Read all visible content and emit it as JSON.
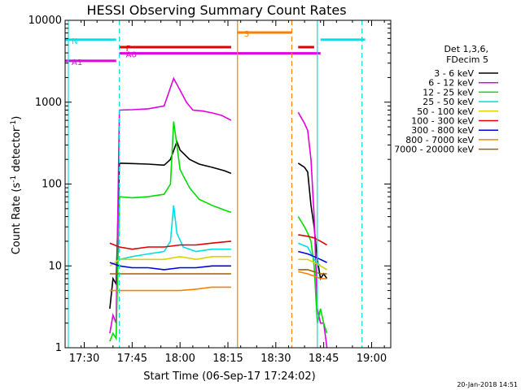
{
  "chart_data": {
    "type": "line",
    "title": "HESSI Observing Summary Count Rates",
    "xlabel": "Start Time (06-Sep-17 17:24:02)",
    "ylabel_main": "Count Rate (s",
    "ylabel_sup1": "-1",
    "ylabel_mid": " detector",
    "ylabel_sup2": "-1",
    "ylabel_end": ")",
    "yscale": "log",
    "ylim": [
      1,
      10000
    ],
    "xlim": [
      "17:24",
      "19:06"
    ],
    "x_ticks": [
      "17:30",
      "17:45",
      "18:00",
      "18:15",
      "18:30",
      "18:45",
      "19:00"
    ],
    "y_ticks": [
      "1",
      "10",
      "100",
      "1000",
      "10000"
    ],
    "footer_date": "20-Jan-2018 14:51",
    "legend": {
      "header1": "Det 1,3,6,",
      "header2": "FDecim 5",
      "entries": [
        {
          "label": "3 - 6 keV",
          "color": "#000000"
        },
        {
          "label": "6 - 12 keV",
          "color": "#e000e0"
        },
        {
          "label": "12 - 25 keV",
          "color": "#00dd00"
        },
        {
          "label": "25 - 50 keV",
          "color": "#00e0e0"
        },
        {
          "label": "50 - 100 keV",
          "color": "#e0d000"
        },
        {
          "label": "100 - 300 keV",
          "color": "#e00000"
        },
        {
          "label": "300 - 800 keV",
          "color": "#0000e0"
        },
        {
          "label": "800 - 7000 keV",
          "color": "#ff8000"
        },
        {
          "label": "7000 - 20000 keV",
          "color": "#a06000"
        }
      ]
    },
    "flags": [
      {
        "label": "N",
        "color": "#00e0e0",
        "y": 5800,
        "segments": [
          [
            "17:24",
            "17:40"
          ],
          [
            "18:44",
            "18:58"
          ]
        ]
      },
      {
        "label": "S",
        "color": "#ff8000",
        "y": 7100,
        "segments": [
          [
            "18:18",
            "18:35"
          ]
        ]
      },
      {
        "label": "F",
        "color": "#e00000",
        "y": 4700,
        "segments": [
          [
            "17:41",
            "18:16"
          ],
          [
            "18:37",
            "18:42"
          ]
        ]
      },
      {
        "label": "A0",
        "color": "#e000e0",
        "y": 3950,
        "segments": [
          [
            "17:41",
            "18:44"
          ]
        ]
      },
      {
        "label": "A1",
        "color": "#e000e0",
        "y": 3200,
        "segments": [
          [
            "17:24",
            "17:40"
          ]
        ]
      }
    ],
    "vertical_lines": [
      {
        "x": "17:25",
        "color": "#00e0e0",
        "style": "solid"
      },
      {
        "x": "17:41",
        "color": "#00e0e0",
        "style": "dashed"
      },
      {
        "x": "18:18",
        "color": "#ff8000",
        "style": "solid"
      },
      {
        "x": "18:35",
        "color": "#ff8000",
        "style": "dashed"
      },
      {
        "x": "18:43",
        "color": "#00e0e0",
        "style": "solid"
      },
      {
        "x": "18:57",
        "color": "#00e0e0",
        "style": "dashed"
      }
    ],
    "series": [
      {
        "name": "3 - 6 keV",
        "color": "#000000",
        "points": [
          [
            "17:38",
            3
          ],
          [
            "17:39",
            7
          ],
          [
            "17:40",
            6
          ],
          [
            "17:41",
            180
          ],
          [
            "17:45",
            178
          ],
          [
            "17:50",
            175
          ],
          [
            "17:55",
            170
          ],
          [
            "17:57",
            200
          ],
          [
            "17:59",
            330
          ],
          [
            "18:00",
            260
          ],
          [
            "18:03",
            200
          ],
          [
            "18:06",
            175
          ],
          [
            "18:10",
            160
          ],
          [
            "18:14",
            145
          ],
          [
            "18:16",
            135
          ],
          [
            "18:37",
            180
          ],
          [
            "18:39",
            160
          ],
          [
            "18:40",
            140
          ],
          [
            "18:41",
            55
          ],
          [
            "18:42",
            30
          ],
          [
            "18:43",
            12
          ],
          [
            "18:44",
            7
          ],
          [
            "18:45",
            8
          ],
          [
            "18:46",
            7
          ]
        ]
      },
      {
        "name": "6 - 12 keV",
        "color": "#e000e0",
        "points": [
          [
            "17:38",
            1.5
          ],
          [
            "17:39",
            2.5
          ],
          [
            "17:40",
            2
          ],
          [
            "17:41",
            800
          ],
          [
            "17:45",
            810
          ],
          [
            "17:50",
            830
          ],
          [
            "17:55",
            900
          ],
          [
            "17:58",
            1950
          ],
          [
            "18:00",
            1400
          ],
          [
            "18:02",
            1000
          ],
          [
            "18:04",
            800
          ],
          [
            "18:07",
            780
          ],
          [
            "18:10",
            740
          ],
          [
            "18:13",
            690
          ],
          [
            "18:16",
            600
          ],
          [
            "18:37",
            750
          ],
          [
            "18:39",
            550
          ],
          [
            "18:40",
            450
          ],
          [
            "18:41",
            200
          ],
          [
            "18:42",
            40
          ],
          [
            "18:43",
            3
          ],
          [
            "18:44",
            2
          ],
          [
            "18:45",
            2
          ],
          [
            "18:46",
            1
          ]
        ]
      },
      {
        "name": "12 - 25 keV",
        "color": "#00dd00",
        "points": [
          [
            "17:38",
            1.2
          ],
          [
            "17:39",
            1.5
          ],
          [
            "17:40",
            1.3
          ],
          [
            "17:41",
            70
          ],
          [
            "17:45",
            68
          ],
          [
            "17:50",
            70
          ],
          [
            "17:55",
            75
          ],
          [
            "17:57",
            100
          ],
          [
            "17:58",
            580
          ],
          [
            "17:59",
            300
          ],
          [
            "18:00",
            150
          ],
          [
            "18:03",
            90
          ],
          [
            "18:06",
            65
          ],
          [
            "18:10",
            55
          ],
          [
            "18:14",
            48
          ],
          [
            "18:16",
            45
          ],
          [
            "18:37",
            40
          ],
          [
            "18:39",
            30
          ],
          [
            "18:40",
            25
          ],
          [
            "18:41",
            20
          ],
          [
            "18:42",
            10
          ],
          [
            "18:43",
            2
          ],
          [
            "18:44",
            3
          ],
          [
            "18:45",
            2
          ],
          [
            "18:46",
            1.5
          ]
        ]
      },
      {
        "name": "25 - 50 keV",
        "color": "#00e0e0",
        "points": [
          [
            "17:41",
            12
          ],
          [
            "17:45",
            13
          ],
          [
            "17:50",
            14
          ],
          [
            "17:55",
            15
          ],
          [
            "17:57",
            20
          ],
          [
            "17:58",
            55
          ],
          [
            "17:59",
            25
          ],
          [
            "18:01",
            17
          ],
          [
            "18:05",
            15
          ],
          [
            "18:10",
            16
          ],
          [
            "18:16",
            16
          ],
          [
            "18:37",
            19
          ],
          [
            "18:40",
            17
          ],
          [
            "18:42",
            12
          ],
          [
            "18:44",
            10
          ],
          [
            "18:46",
            9
          ]
        ]
      },
      {
        "name": "50 - 100 keV",
        "color": "#e0d000",
        "points": [
          [
            "17:38",
            10
          ],
          [
            "17:41",
            12
          ],
          [
            "17:45",
            12
          ],
          [
            "17:50",
            12
          ],
          [
            "17:55",
            12
          ],
          [
            "18:00",
            13
          ],
          [
            "18:05",
            12
          ],
          [
            "18:10",
            13
          ],
          [
            "18:16",
            13
          ],
          [
            "18:37",
            12
          ],
          [
            "18:40",
            12
          ],
          [
            "18:42",
            11
          ],
          [
            "18:44",
            10
          ],
          [
            "18:46",
            9
          ]
        ]
      },
      {
        "name": "100 - 300 keV",
        "color": "#e00000",
        "points": [
          [
            "17:38",
            19
          ],
          [
            "17:41",
            17
          ],
          [
            "17:45",
            16
          ],
          [
            "17:50",
            17
          ],
          [
            "17:55",
            17
          ],
          [
            "18:00",
            18
          ],
          [
            "18:05",
            18
          ],
          [
            "18:10",
            19
          ],
          [
            "18:16",
            20
          ],
          [
            "18:37",
            24
          ],
          [
            "18:40",
            23
          ],
          [
            "18:42",
            22
          ],
          [
            "18:44",
            20
          ],
          [
            "18:46",
            18
          ]
        ]
      },
      {
        "name": "300 - 800 keV",
        "color": "#0000e0",
        "points": [
          [
            "17:38",
            11
          ],
          [
            "17:41",
            10
          ],
          [
            "17:45",
            9.5
          ],
          [
            "17:50",
            9.5
          ],
          [
            "17:55",
            9
          ],
          [
            "18:00",
            9.5
          ],
          [
            "18:05",
            9.5
          ],
          [
            "18:10",
            10
          ],
          [
            "18:16",
            10
          ],
          [
            "18:37",
            15
          ],
          [
            "18:40",
            14
          ],
          [
            "18:42",
            13
          ],
          [
            "18:44",
            12
          ],
          [
            "18:46",
            11
          ]
        ]
      },
      {
        "name": "800 - 7000 keV",
        "color": "#ff8000",
        "points": [
          [
            "17:38",
            5
          ],
          [
            "17:41",
            5
          ],
          [
            "17:45",
            5
          ],
          [
            "17:50",
            5
          ],
          [
            "17:55",
            5
          ],
          [
            "18:00",
            5
          ],
          [
            "18:05",
            5.2
          ],
          [
            "18:10",
            5.5
          ],
          [
            "18:16",
            5.5
          ],
          [
            "18:37",
            8.5
          ],
          [
            "18:40",
            8
          ],
          [
            "18:42",
            7.5
          ],
          [
            "18:44",
            7
          ],
          [
            "18:46",
            7
          ]
        ]
      },
      {
        "name": "7000 - 20000 keV",
        "color": "#a06000",
        "points": [
          [
            "17:38",
            8
          ],
          [
            "17:41",
            8
          ],
          [
            "17:45",
            8
          ],
          [
            "17:50",
            8
          ],
          [
            "17:55",
            8
          ],
          [
            "18:00",
            8
          ],
          [
            "18:05",
            8
          ],
          [
            "18:10",
            8
          ],
          [
            "18:16",
            8
          ],
          [
            "18:37",
            9
          ],
          [
            "18:40",
            9
          ],
          [
            "18:42",
            8.5
          ],
          [
            "18:44",
            8
          ],
          [
            "18:46",
            8
          ]
        ]
      }
    ]
  }
}
